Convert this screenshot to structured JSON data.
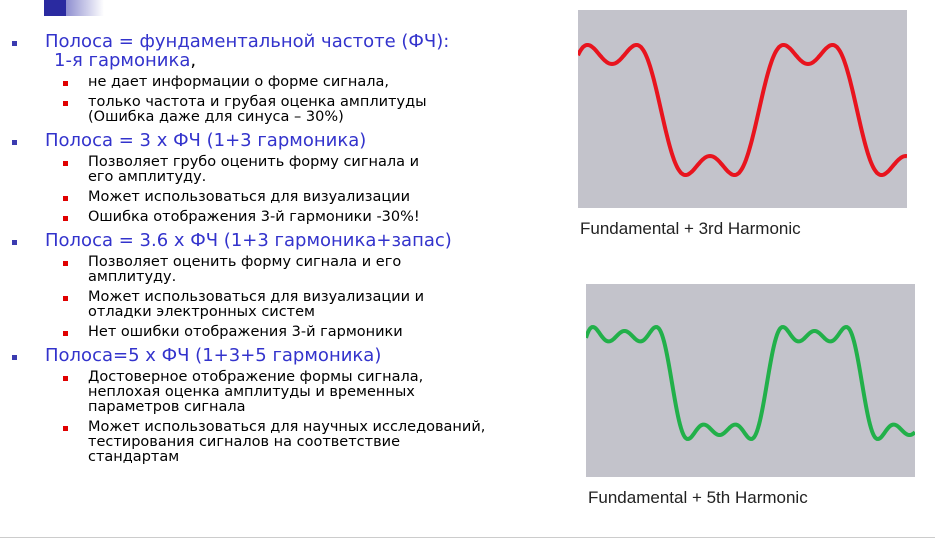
{
  "items": [
    {
      "lines": [
        "Полоса = фундаментальной частоте (ФЧ):",
        "1-я гармоника"
      ],
      "suffix": ",",
      "sub": [
        [
          "не дает информации  о форме сигнала,"
        ],
        [
          "только частота и грубая оценка  амплитуды",
          "(Ошибка даже для синуса – 30%)"
        ]
      ]
    },
    {
      "lines": [
        "Полоса = 3 х ФЧ  (1+3 гармоника)"
      ],
      "sub": [
        [
          "Позволяет грубо  оценить форму сигнала и",
          "его амплитуду."
        ],
        [
          "Может использоваться для визуализации"
        ],
        [
          "Ошибка отображения 3-й гармоники -30%!"
        ]
      ]
    },
    {
      "lines": [
        "Полоса = 3.6 х ФЧ (1+3 гармоника+запас)"
      ],
      "sub": [
        [
          "Позволяет оценить форму сигнала и его",
          "амплитуду."
        ],
        [
          "Может использоваться для визуализации  и",
          "отладки электронных систем"
        ],
        [
          "Нет ошибки отображения 3-й гармоники"
        ]
      ]
    },
    {
      "lines": [
        "Полоса=5 х ФЧ (1+3+5 гармоника)"
      ],
      "sub": [
        [
          "Достоверное отображение формы сигнала,",
          "неплохая оценка амплитуды и временных",
          "параметров сигнала"
        ],
        [
          "Может использоваться для научных исследований,",
          "тестирования сигналов на соответствие",
          "стандартам"
        ]
      ]
    }
  ],
  "figures": [
    {
      "caption": "Fundamental + 3rd Harmonic"
    },
    {
      "caption": "Fundamental + 5th Harmonic"
    }
  ]
}
